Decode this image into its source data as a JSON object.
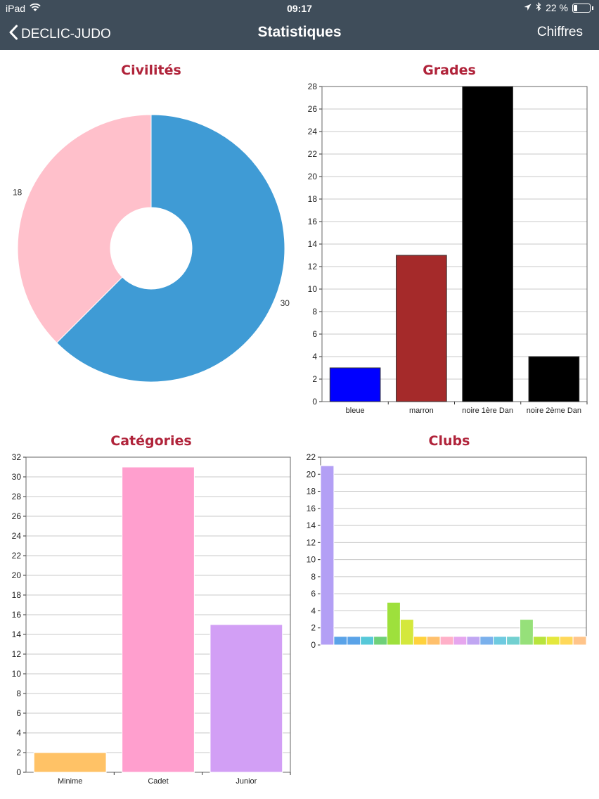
{
  "status_bar": {
    "device": "iPad",
    "time": "09:17",
    "battery": "22 %",
    "battery_level": 0.22
  },
  "nav": {
    "back_label": "DECLIC-JUDO",
    "title": "Statistiques",
    "right_label": "Chiffres"
  },
  "chart_data": [
    {
      "type": "pie",
      "title": "Civilités",
      "values": [
        30,
        18
      ],
      "colors": [
        "#3f9bd5",
        "#ffc0cb"
      ],
      "donut": true
    },
    {
      "type": "bar",
      "title": "Grades",
      "categories": [
        "bleue",
        "marron",
        "noire 1ère Dan",
        "noire 2ème Dan"
      ],
      "values": [
        3,
        13,
        28,
        4
      ],
      "colors": [
        "#0000ff",
        "#a52a2a",
        "#000000",
        "#000000"
      ],
      "ylim": [
        0,
        28
      ],
      "yticks": [
        0,
        2,
        4,
        6,
        8,
        10,
        12,
        14,
        16,
        18,
        20,
        22,
        24,
        26,
        28
      ],
      "grid": true
    },
    {
      "type": "bar",
      "title": "Catégories",
      "categories": [
        "Minime",
        "Cadet",
        "Junior"
      ],
      "values": [
        2,
        31,
        15
      ],
      "colors": [
        "#ffc266",
        "#ff9fce",
        "#d29ff5"
      ],
      "ylim": [
        0,
        32
      ],
      "yticks": [
        0,
        2,
        4,
        6,
        8,
        10,
        12,
        14,
        16,
        18,
        20,
        22,
        24,
        26,
        28,
        30,
        32
      ],
      "grid": true
    },
    {
      "type": "bar",
      "title": "Clubs",
      "values": [
        21,
        1,
        1,
        1,
        1,
        5,
        3,
        1,
        1,
        1,
        1,
        1,
        1,
        1,
        1,
        3,
        1,
        1,
        1,
        1
      ],
      "colors": [
        "#b39ff5",
        "#5aa3e8",
        "#5aa3e8",
        "#56c8d8",
        "#6fd07a",
        "#9ee03c",
        "#d4e83c",
        "#ffd23c",
        "#ffc06c",
        "#ffb0c8",
        "#e6a6ee",
        "#c0a6f2",
        "#7ab0ec",
        "#6ecae0",
        "#72d0d0",
        "#96e07a",
        "#b8e43c",
        "#e4e83c",
        "#ffd85a",
        "#ffc48a"
      ],
      "ylim": [
        0,
        22
      ],
      "yticks": [
        0,
        2,
        4,
        6,
        8,
        10,
        12,
        14,
        16,
        18,
        20,
        22
      ],
      "grid": true
    }
  ]
}
